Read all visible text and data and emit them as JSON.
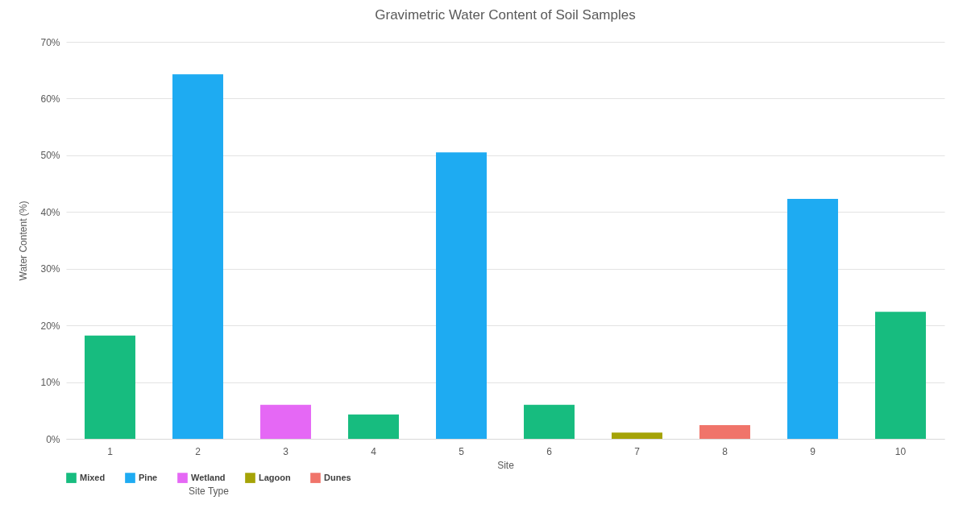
{
  "chart_data": {
    "type": "bar",
    "title": "Gravimetric Water Content of Soil Samples",
    "xlabel": "Site",
    "ylabel": "Water Content (%)",
    "legend_title": "Site Type",
    "categories": [
      "1",
      "2",
      "3",
      "4",
      "5",
      "6",
      "7",
      "8",
      "9",
      "10"
    ],
    "series": [
      {
        "name": "Mixed",
        "color": "#17bc7f",
        "values": [
          18.2,
          null,
          null,
          4.3,
          null,
          6.0,
          null,
          null,
          null,
          22.4
        ]
      },
      {
        "name": "Pine",
        "color": "#1eabf2",
        "values": [
          null,
          64.3,
          null,
          null,
          50.5,
          null,
          null,
          null,
          42.3,
          null
        ]
      },
      {
        "name": "Wetland",
        "color": "#e568f5",
        "values": [
          null,
          null,
          6.0,
          null,
          null,
          null,
          null,
          null,
          null,
          null
        ]
      },
      {
        "name": "Lagoon",
        "color": "#a5a307",
        "values": [
          null,
          null,
          null,
          null,
          null,
          null,
          1.1,
          null,
          null,
          null
        ]
      },
      {
        "name": "Dunes",
        "color": "#f0746a",
        "values": [
          null,
          null,
          null,
          null,
          null,
          null,
          null,
          2.4,
          null,
          null
        ]
      }
    ],
    "ylim": [
      0,
      70
    ],
    "yticks": [
      {
        "value": 0,
        "label": "0%"
      },
      {
        "value": 10,
        "label": "10%"
      },
      {
        "value": 20,
        "label": "20%"
      },
      {
        "value": 30,
        "label": "30%"
      },
      {
        "value": 40,
        "label": "40%"
      },
      {
        "value": 50,
        "label": "50%"
      },
      {
        "value": 60,
        "label": "60%"
      },
      {
        "value": 70,
        "label": "70%"
      }
    ],
    "grid": "y",
    "legend": "bottom"
  }
}
